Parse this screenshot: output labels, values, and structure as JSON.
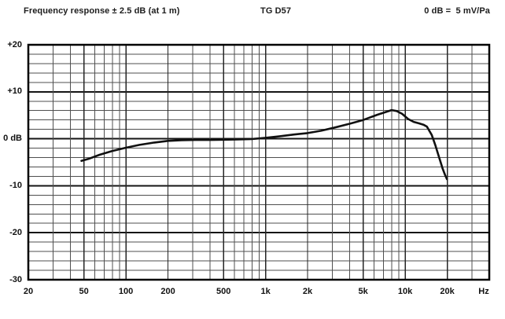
{
  "header": {
    "left": "Frequency response ± 2.5 dB (at 1 m)",
    "center": "TG D57",
    "right": "0 dB =  5 mV/Pa"
  },
  "chart_data": {
    "type": "line",
    "title": "TG D57",
    "subtitle_left": "Frequency response ± 2.5 dB (at 1 m)",
    "sensitivity_note": "0 dB =  5 mV/Pa",
    "xlabel": "Hz",
    "ylabel": "dB",
    "x_scale": "log",
    "grid": "on",
    "x_range_hz": [
      20,
      40000
    ],
    "y_range_db": [
      -30,
      20
    ],
    "y_grid_step_db": 2,
    "y_major_step_db": 10,
    "x_unit_label": "Hz",
    "x_axis_ticks": [
      {
        "value": 20,
        "label": "20"
      },
      {
        "value": 50,
        "label": "50"
      },
      {
        "value": 100,
        "label": "100"
      },
      {
        "value": 200,
        "label": "200"
      },
      {
        "value": 500,
        "label": "500"
      },
      {
        "value": 1000,
        "label": "1k"
      },
      {
        "value": 2000,
        "label": "2k"
      },
      {
        "value": 5000,
        "label": "5k"
      },
      {
        "value": 10000,
        "label": "10k"
      },
      {
        "value": 20000,
        "label": "20k"
      }
    ],
    "y_axis_ticks": [
      {
        "value": 20,
        "label": "+20"
      },
      {
        "value": 10,
        "label": "+10"
      },
      {
        "value": 0,
        "label": "0 dB"
      },
      {
        "value": -10,
        "label": "-10"
      },
      {
        "value": -20,
        "label": "-20"
      },
      {
        "value": -30,
        "label": "-30"
      }
    ],
    "colors": {
      "background": "#ffffff",
      "curve": "#111111",
      "border": "#000000",
      "grid_major": "#151515",
      "grid_minor": "#4f4f4f",
      "grid_labeled_freq": "#262626"
    },
    "series": [
      {
        "name": "on-axis frequency response (dB vs Hz)",
        "points": [
          [
            48,
            -4.7
          ],
          [
            55,
            -4.2
          ],
          [
            65,
            -3.4
          ],
          [
            80,
            -2.6
          ],
          [
            100,
            -1.9
          ],
          [
            125,
            -1.3
          ],
          [
            160,
            -0.8
          ],
          [
            200,
            -0.45
          ],
          [
            250,
            -0.3
          ],
          [
            315,
            -0.25
          ],
          [
            400,
            -0.25
          ],
          [
            500,
            -0.2
          ],
          [
            630,
            -0.15
          ],
          [
            800,
            -0.05
          ],
          [
            1000,
            0.2
          ],
          [
            1250,
            0.5
          ],
          [
            1600,
            0.9
          ],
          [
            2000,
            1.2
          ],
          [
            2500,
            1.7
          ],
          [
            3150,
            2.4
          ],
          [
            4000,
            3.2
          ],
          [
            5000,
            4.0
          ],
          [
            6300,
            5.1
          ],
          [
            7100,
            5.6
          ],
          [
            8000,
            6.1
          ],
          [
            8700,
            5.9
          ],
          [
            9500,
            5.3
          ],
          [
            10500,
            4.2
          ],
          [
            11500,
            3.6
          ],
          [
            12500,
            3.3
          ],
          [
            13500,
            3.0
          ],
          [
            14300,
            2.6
          ],
          [
            15500,
            0.8
          ],
          [
            16500,
            -1.5
          ],
          [
            17500,
            -4.0
          ],
          [
            18500,
            -6.3
          ],
          [
            19300,
            -7.7
          ],
          [
            19900,
            -8.6
          ]
        ]
      }
    ]
  }
}
